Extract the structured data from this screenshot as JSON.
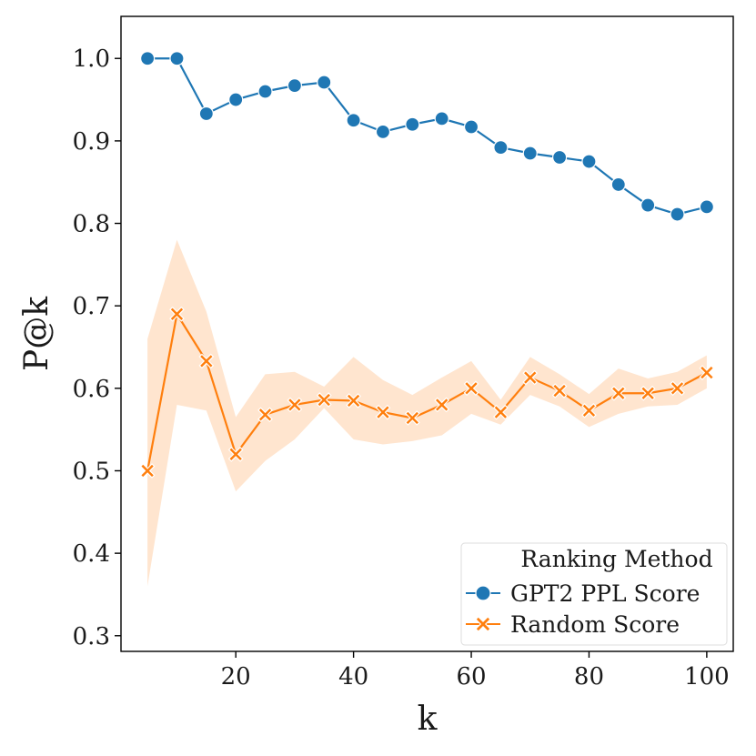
{
  "chart_data": {
    "type": "line",
    "title": "",
    "xlabel": "k",
    "ylabel": "P@k",
    "xlim": [
      0.5,
      104.5
    ],
    "ylim": [
      0.281,
      1.051
    ],
    "xticks": [
      20,
      40,
      60,
      80,
      100
    ],
    "yticks": [
      0.3,
      0.4,
      0.5,
      0.6,
      0.7,
      0.8,
      0.9,
      1.0
    ],
    "xtick_labels": [
      "20",
      "40",
      "60",
      "80",
      "100"
    ],
    "ytick_labels": [
      "0.3",
      "0.4",
      "0.5",
      "0.6",
      "0.7",
      "0.8",
      "0.9",
      "1.0"
    ],
    "grid": false,
    "legend": {
      "title": "Ranking Method",
      "location": "lower-right"
    },
    "x": [
      5,
      10,
      15,
      20,
      25,
      30,
      35,
      40,
      45,
      50,
      55,
      60,
      65,
      70,
      75,
      80,
      85,
      90,
      95,
      100
    ],
    "series": [
      {
        "name": "GPT2 PPL Score",
        "color": "#1f77b4",
        "marker": "circle",
        "values": [
          1.0,
          1.0,
          0.933,
          0.95,
          0.96,
          0.967,
          0.971,
          0.925,
          0.911,
          0.92,
          0.927,
          0.917,
          0.892,
          0.885,
          0.88,
          0.875,
          0.847,
          0.822,
          0.811,
          0.82
        ]
      },
      {
        "name": "Random Score",
        "color": "#ff7f0e",
        "marker": "x",
        "values": [
          0.5,
          0.69,
          0.633,
          0.52,
          0.568,
          0.58,
          0.586,
          0.585,
          0.571,
          0.564,
          0.58,
          0.6,
          0.571,
          0.613,
          0.597,
          0.573,
          0.594,
          0.594,
          0.6,
          0.619
        ],
        "ci_lower": [
          0.36,
          0.58,
          0.573,
          0.475,
          0.512,
          0.538,
          0.576,
          0.538,
          0.532,
          0.536,
          0.543,
          0.569,
          0.556,
          0.592,
          0.578,
          0.553,
          0.569,
          0.578,
          0.58,
          0.6
        ],
        "ci_upper": [
          0.66,
          0.78,
          0.693,
          0.565,
          0.617,
          0.62,
          0.602,
          0.638,
          0.61,
          0.592,
          0.613,
          0.633,
          0.586,
          0.638,
          0.617,
          0.593,
          0.624,
          0.612,
          0.62,
          0.64
        ]
      }
    ]
  }
}
